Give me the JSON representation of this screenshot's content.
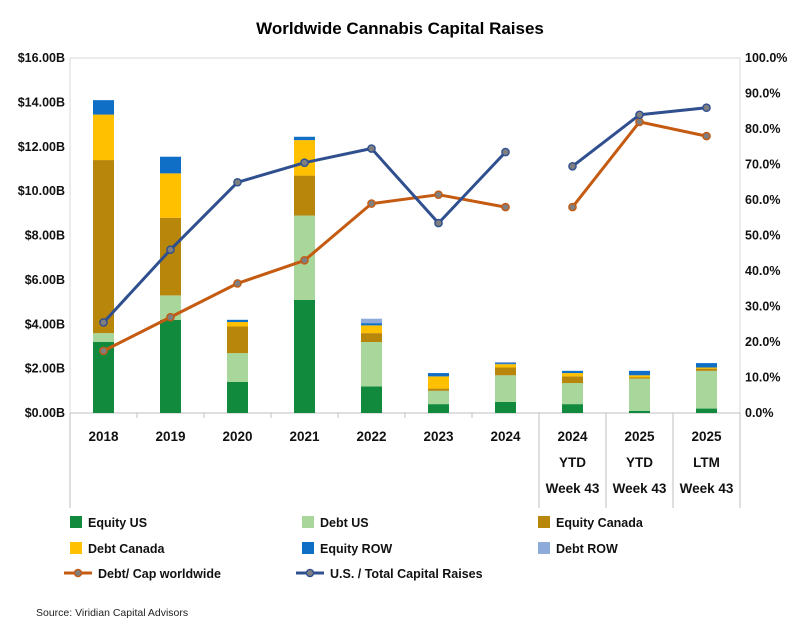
{
  "chart_data": {
    "type": "bar",
    "title": "Worldwide Cannabis Capital Raises",
    "source": "Source: Viridian Capital Advisors",
    "categories": [
      [
        "2018"
      ],
      [
        "2019"
      ],
      [
        "2020"
      ],
      [
        "2021"
      ],
      [
        "2022"
      ],
      [
        "2023"
      ],
      [
        "2024"
      ],
      [
        "2024",
        "YTD",
        "Week 43"
      ],
      [
        "2025",
        "YTD",
        "Week 43"
      ],
      [
        "2025",
        "LTM",
        "Week 43"
      ]
    ],
    "y_left": {
      "min": 0,
      "max": 16,
      "step": 2,
      "tick_labels": [
        "$0.00B",
        "$2.00B",
        "$4.00B",
        "$6.00B",
        "$8.00B",
        "$10.00B",
        "$12.00B",
        "$14.00B",
        "$16.00B"
      ]
    },
    "y_right": {
      "min": 0,
      "max": 100,
      "step": 10,
      "tick_labels": [
        "0.0%",
        "10.0%",
        "20.0%",
        "30.0%",
        "40.0%",
        "50.0%",
        "60.0%",
        "70.0%",
        "80.0%",
        "90.0%",
        "100.0%"
      ]
    },
    "stacked_series": [
      {
        "name": "Equity US",
        "color": "#128a3e",
        "values": [
          3.2,
          4.2,
          1.4,
          5.1,
          1.2,
          0.4,
          0.5,
          0.4,
          0.1,
          0.2
        ]
      },
      {
        "name": "Debt US",
        "color": "#a9d69a",
        "values": [
          0.4,
          1.1,
          1.3,
          3.8,
          2.0,
          0.6,
          1.2,
          0.95,
          1.45,
          1.7
        ]
      },
      {
        "name": "Equity Canada",
        "color": "#b8860b",
        "values": [
          7.8,
          3.5,
          1.2,
          1.8,
          0.4,
          0.1,
          0.35,
          0.3,
          0.05,
          0.1
        ]
      },
      {
        "name": "Debt Canada",
        "color": "#ffc000",
        "values": [
          2.05,
          2.0,
          0.2,
          1.6,
          0.35,
          0.55,
          0.15,
          0.15,
          0.1,
          0.05
        ]
      },
      {
        "name": "Equity ROW",
        "color": "#0f6fc6",
        "values": [
          0.65,
          0.75,
          0.1,
          0.15,
          0.1,
          0.15,
          0.05,
          0.1,
          0.2,
          0.2
        ]
      },
      {
        "name": "Debt ROW",
        "color": "#8eaadb",
        "values": [
          0,
          0,
          0,
          0,
          0.2,
          0,
          0.05,
          0,
          0,
          0
        ]
      }
    ],
    "line_series": [
      {
        "name": "Debt/ Cap worldwide",
        "color": "#c55a11",
        "values": [
          17.5,
          27.0,
          36.5,
          43.0,
          59.0,
          61.5,
          58.0,
          58.0,
          82.0,
          78.0
        ]
      },
      {
        "name": "U.S. / Total Capital Raises",
        "color": "#2f4f8f",
        "values": [
          25.5,
          46.0,
          65.0,
          70.5,
          74.5,
          53.5,
          73.5,
          69.5,
          84.0,
          86.0
        ]
      }
    ],
    "line_breaks_after_index": 6,
    "legend": {
      "placement": "bottom",
      "items": [
        "Equity US",
        "Debt US",
        "Equity Canada",
        "Debt Canada",
        "Equity ROW",
        "Debt ROW",
        "Debt/ Cap worldwide",
        "U.S. / Total Capital Raises"
      ]
    }
  }
}
